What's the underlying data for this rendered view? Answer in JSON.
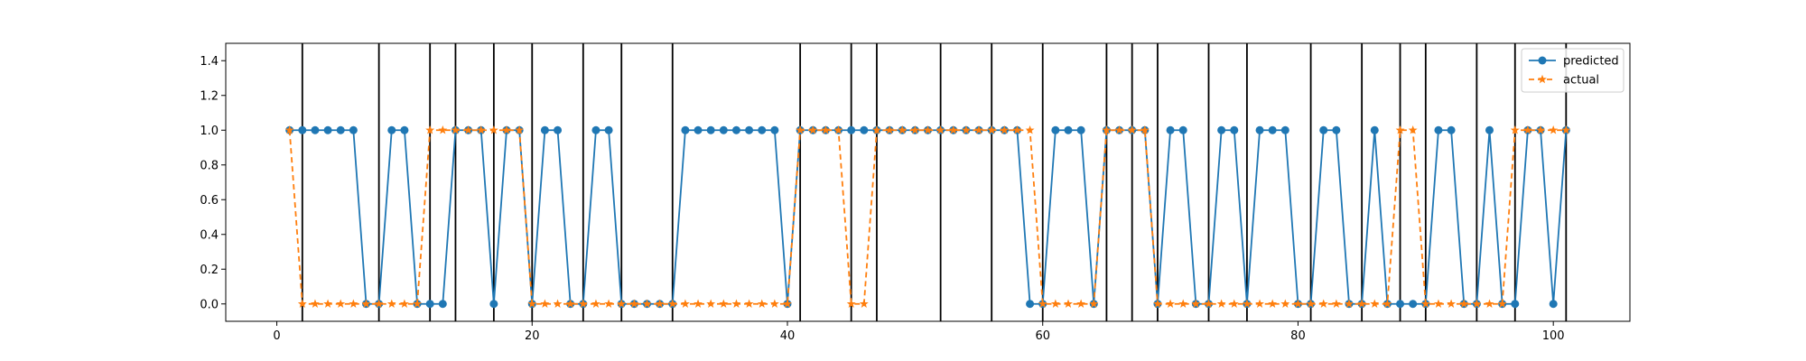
{
  "chart_data": {
    "type": "line",
    "title": "",
    "xlabel": "",
    "ylabel": "",
    "xlim": [
      -4,
      106
    ],
    "ylim": [
      -0.1,
      1.5
    ],
    "xticks": [
      0,
      20,
      40,
      60,
      80,
      100
    ],
    "yticks": [
      0.0,
      0.2,
      0.4,
      0.6,
      0.8,
      1.0,
      1.2,
      1.4
    ],
    "ytick_labels": [
      "0.0",
      "0.2",
      "0.4",
      "0.6",
      "0.8",
      "1.0",
      "1.2",
      "1.4"
    ],
    "grid": false,
    "legend_position": "top-right",
    "vertical_lines": [
      2,
      8,
      12,
      14,
      17,
      20,
      24,
      27,
      31,
      41,
      45,
      47,
      52,
      56,
      60,
      65,
      67,
      69,
      73,
      76,
      81,
      85,
      88,
      90,
      94,
      97,
      101
    ],
    "x": [
      1,
      2,
      3,
      4,
      5,
      6,
      7,
      8,
      9,
      10,
      11,
      12,
      13,
      14,
      15,
      16,
      17,
      18,
      19,
      20,
      21,
      22,
      23,
      24,
      25,
      26,
      27,
      28,
      29,
      30,
      31,
      32,
      33,
      34,
      35,
      36,
      37,
      38,
      39,
      40,
      41,
      42,
      43,
      44,
      45,
      46,
      47,
      48,
      49,
      50,
      51,
      52,
      53,
      54,
      55,
      56,
      57,
      58,
      59,
      60,
      61,
      62,
      63,
      64,
      65,
      66,
      67,
      68,
      69,
      70,
      71,
      72,
      73,
      74,
      75,
      76,
      77,
      78,
      79,
      80,
      81,
      82,
      83,
      84,
      85,
      86,
      87,
      88,
      89,
      90,
      91,
      92,
      93,
      94,
      95,
      96,
      97,
      98,
      99,
      100,
      101
    ],
    "series": [
      {
        "name": "predicted",
        "color": "#1f77b4",
        "marker": "circle",
        "linestyle": "solid",
        "values": [
          1,
          1,
          1,
          1,
          1,
          1,
          0,
          0,
          1,
          1,
          0,
          0,
          0,
          1,
          1,
          1,
          0,
          1,
          1,
          0,
          1,
          1,
          0,
          0,
          1,
          1,
          0,
          0,
          0,
          0,
          0,
          1,
          1,
          1,
          1,
          1,
          1,
          1,
          1,
          0,
          1,
          1,
          1,
          1,
          1,
          1,
          1,
          1,
          1,
          1,
          1,
          1,
          1,
          1,
          1,
          1,
          1,
          1,
          0,
          0,
          1,
          1,
          1,
          0,
          1,
          1,
          1,
          1,
          0,
          1,
          1,
          0,
          0,
          1,
          1,
          0,
          1,
          1,
          1,
          0,
          0,
          1,
          1,
          0,
          0,
          1,
          0,
          0,
          0,
          0,
          1,
          1,
          0,
          0,
          1,
          0,
          0,
          1,
          1,
          0,
          1
        ]
      },
      {
        "name": "actual",
        "color": "#ff7f0e",
        "marker": "star",
        "linestyle": "dashed",
        "values": [
          1,
          0,
          0,
          0,
          0,
          0,
          0,
          0,
          0,
          0,
          0,
          1,
          1,
          1,
          1,
          1,
          1,
          1,
          1,
          0,
          0,
          0,
          0,
          0,
          0,
          0,
          0,
          0,
          0,
          0,
          0,
          0,
          0,
          0,
          0,
          0,
          0,
          0,
          0,
          0,
          1,
          1,
          1,
          1,
          0,
          0,
          1,
          1,
          1,
          1,
          1,
          1,
          1,
          1,
          1,
          1,
          1,
          1,
          1,
          0,
          0,
          0,
          0,
          0,
          1,
          1,
          1,
          1,
          0,
          0,
          0,
          0,
          0,
          0,
          0,
          0,
          0,
          0,
          0,
          0,
          0,
          0,
          0,
          0,
          0,
          0,
          0,
          1,
          1,
          0,
          0,
          0,
          0,
          0,
          0,
          0,
          1,
          1,
          1,
          1,
          1
        ]
      }
    ]
  }
}
